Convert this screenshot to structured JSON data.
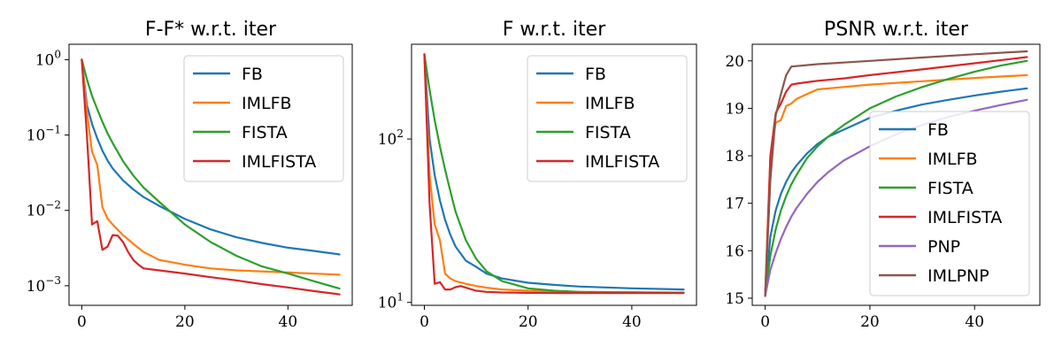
{
  "chart_data": [
    {
      "type": "line",
      "title": "F-F* w.r.t. iter",
      "xlabel": "",
      "ylabel": "",
      "yscale": "log",
      "xlim": [
        0,
        50
      ],
      "ylim": [
        0.00055,
        1.6
      ],
      "xticks": [
        {
          "value": 0,
          "label": "0"
        },
        {
          "value": 20,
          "label": "20"
        },
        {
          "value": 40,
          "label": "40"
        }
      ],
      "yticks": [
        {
          "value": 1,
          "base": "10",
          "exp": "0"
        },
        {
          "value": 0.1,
          "base": "10",
          "exp": "−1"
        },
        {
          "value": 0.01,
          "base": "10",
          "exp": "−2"
        },
        {
          "value": 0.001,
          "base": "10",
          "exp": "−3"
        }
      ],
      "grid": false,
      "legend_position": "top-right",
      "series": [
        {
          "name": "FB",
          "color": "#1f77b4",
          "x": [
            0,
            1,
            2,
            3,
            4,
            5,
            6,
            8,
            10,
            12,
            15,
            20,
            25,
            30,
            35,
            40,
            45,
            50
          ],
          "y": [
            1,
            0.25,
            0.14,
            0.09,
            0.062,
            0.046,
            0.036,
            0.025,
            0.019,
            0.015,
            0.0115,
            0.0077,
            0.0056,
            0.0044,
            0.0037,
            0.0032,
            0.0029,
            0.0026
          ]
        },
        {
          "name": "IMLFB",
          "color": "#ff7f0e",
          "x": [
            0,
            1,
            2,
            3,
            4,
            5,
            6,
            8,
            10,
            12,
            15,
            20,
            25,
            30,
            40,
            50
          ],
          "y": [
            1,
            0.2,
            0.06,
            0.04,
            0.011,
            0.0078,
            0.0065,
            0.0047,
            0.0036,
            0.0028,
            0.0022,
            0.0019,
            0.0017,
            0.0016,
            0.0015,
            0.0014
          ]
        },
        {
          "name": "FISTA",
          "color": "#2ca02c",
          "x": [
            0,
            1,
            2,
            3,
            4,
            5,
            6,
            8,
            10,
            12,
            15,
            20,
            25,
            30,
            35,
            40,
            45,
            50
          ],
          "y": [
            1,
            0.55,
            0.33,
            0.22,
            0.15,
            0.105,
            0.078,
            0.045,
            0.029,
            0.02,
            0.013,
            0.0065,
            0.0038,
            0.0025,
            0.0018,
            0.00145,
            0.00115,
            0.00092
          ]
        },
        {
          "name": "IMLFISTA",
          "color": "#d62728",
          "x": [
            0,
            1,
            2,
            3,
            4,
            5,
            6,
            7,
            8,
            9,
            10,
            11,
            12,
            15,
            20,
            25,
            30,
            35,
            40,
            45,
            50
          ],
          "y": [
            1,
            0.1,
            0.0065,
            0.0072,
            0.003,
            0.0033,
            0.0047,
            0.0046,
            0.0038,
            0.0028,
            0.0022,
            0.0019,
            0.0017,
            0.0016,
            0.00145,
            0.0013,
            0.00118,
            0.00105,
            0.00095,
            0.00085,
            0.00077
          ]
        }
      ]
    },
    {
      "type": "line",
      "title": "F w.r.t. iter",
      "xlabel": "",
      "ylabel": "",
      "yscale": "log",
      "xlim": [
        0,
        50
      ],
      "ylim": [
        9.6,
        380
      ],
      "xticks": [
        {
          "value": 0,
          "label": "0"
        },
        {
          "value": 20,
          "label": "20"
        },
        {
          "value": 40,
          "label": "40"
        }
      ],
      "yticks": [
        {
          "value": 100,
          "base": "10",
          "exp": "2"
        },
        {
          "value": 10,
          "base": "10",
          "exp": "1"
        }
      ],
      "grid": false,
      "legend_position": "top-right",
      "series": [
        {
          "name": "FB",
          "color": "#1f77b4",
          "x": [
            0,
            1,
            2,
            3,
            4,
            5,
            6,
            8,
            10,
            12,
            15,
            20,
            25,
            30,
            40,
            50
          ],
          "y": [
            330,
            100,
            60,
            42,
            32,
            26,
            22,
            18,
            16.5,
            15,
            14,
            13.2,
            12.8,
            12.5,
            12.2,
            12.0
          ]
        },
        {
          "name": "IMLFB",
          "color": "#ff7f0e",
          "x": [
            0,
            1,
            2,
            3,
            4,
            5,
            6,
            8,
            10,
            12,
            15,
            20,
            30,
            40,
            50
          ],
          "y": [
            330,
            60,
            30,
            24,
            15,
            14,
            13.5,
            13,
            12.6,
            12.3,
            12.0,
            11.8,
            11.6,
            11.55,
            11.5
          ]
        },
        {
          "name": "FISTA",
          "color": "#2ca02c",
          "x": [
            0,
            1,
            2,
            3,
            4,
            5,
            6,
            8,
            10,
            12,
            15,
            20,
            25,
            30,
            40,
            50
          ],
          "y": [
            330,
            200,
            130,
            90,
            65,
            48,
            36,
            24,
            18.5,
            15.5,
            13.5,
            12.2,
            11.8,
            11.6,
            11.5,
            11.45
          ]
        },
        {
          "name": "IMLFISTA",
          "color": "#d62728",
          "x": [
            0,
            1,
            2,
            3,
            4,
            5,
            6,
            7,
            8,
            10,
            12,
            15,
            20,
            30,
            40,
            50
          ],
          "y": [
            330,
            40,
            13,
            13.3,
            12,
            12,
            12.4,
            12.6,
            12.3,
            11.8,
            11.6,
            11.5,
            11.45,
            11.4,
            11.4,
            11.4
          ]
        }
      ]
    },
    {
      "type": "line",
      "title": "PSNR w.r.t. iter",
      "xlabel": "",
      "ylabel": "",
      "yscale": "linear",
      "xlim": [
        0,
        50
      ],
      "ylim": [
        14.85,
        20.35
      ],
      "xticks": [
        {
          "value": 0,
          "label": "0"
        },
        {
          "value": 20,
          "label": "20"
        },
        {
          "value": 40,
          "label": "40"
        }
      ],
      "yticks": [
        {
          "value": 15,
          "label": "15"
        },
        {
          "value": 16,
          "label": "16"
        },
        {
          "value": 17,
          "label": "17"
        },
        {
          "value": 18,
          "label": "18"
        },
        {
          "value": 19,
          "label": "19"
        },
        {
          "value": 20,
          "label": "20"
        }
      ],
      "grid": false,
      "legend_position": "center-right",
      "series": [
        {
          "name": "FB",
          "color": "#1f77b4",
          "x": [
            0,
            1,
            2,
            3,
            4,
            5,
            6,
            8,
            10,
            12,
            15,
            20,
            25,
            30,
            35,
            40,
            45,
            50
          ],
          "y": [
            15.05,
            16.3,
            16.85,
            17.2,
            17.45,
            17.65,
            17.8,
            18.05,
            18.25,
            18.4,
            18.55,
            18.8,
            18.95,
            19.08,
            19.18,
            19.27,
            19.35,
            19.42
          ]
        },
        {
          "name": "IMLFB",
          "color": "#ff7f0e",
          "x": [
            0,
            1,
            2,
            3,
            4,
            5,
            6,
            8,
            10,
            15,
            20,
            30,
            40,
            50
          ],
          "y": [
            15.05,
            18.0,
            18.7,
            18.75,
            19.05,
            19.1,
            19.2,
            19.3,
            19.4,
            19.45,
            19.5,
            19.57,
            19.64,
            19.7
          ]
        },
        {
          "name": "FISTA",
          "color": "#2ca02c",
          "x": [
            0,
            1,
            2,
            3,
            4,
            5,
            6,
            8,
            10,
            12,
            15,
            20,
            25,
            30,
            35,
            40,
            45,
            50
          ],
          "y": [
            15.05,
            15.9,
            16.45,
            16.85,
            17.15,
            17.4,
            17.6,
            17.95,
            18.2,
            18.4,
            18.65,
            19.0,
            19.25,
            19.45,
            19.62,
            19.77,
            19.9,
            20.0
          ]
        },
        {
          "name": "IMLFISTA",
          "color": "#d62728",
          "x": [
            0,
            1,
            2,
            3,
            4,
            5,
            6,
            8,
            10,
            15,
            20,
            30,
            40,
            50
          ],
          "y": [
            15.05,
            18.0,
            18.9,
            19.1,
            19.35,
            19.5,
            19.52,
            19.55,
            19.58,
            19.63,
            19.7,
            19.82,
            19.95,
            20.08
          ]
        },
        {
          "name": "PNP",
          "color": "#9467bd",
          "x": [
            0,
            1,
            2,
            3,
            4,
            5,
            6,
            8,
            10,
            12,
            15,
            20,
            25,
            30,
            35,
            40,
            45,
            50
          ],
          "y": [
            15.05,
            15.6,
            15.95,
            16.25,
            16.5,
            16.72,
            16.9,
            17.2,
            17.45,
            17.65,
            17.9,
            18.2,
            18.45,
            18.65,
            18.82,
            18.95,
            19.07,
            19.18
          ]
        },
        {
          "name": "IMLPNP",
          "color": "#8c564b",
          "x": [
            0,
            1,
            2,
            3,
            4,
            5,
            10,
            20,
            30,
            40,
            50
          ],
          "y": [
            15.05,
            17.5,
            18.85,
            19.3,
            19.7,
            19.88,
            19.93,
            20.0,
            20.07,
            20.14,
            20.2
          ]
        }
      ]
    }
  ]
}
